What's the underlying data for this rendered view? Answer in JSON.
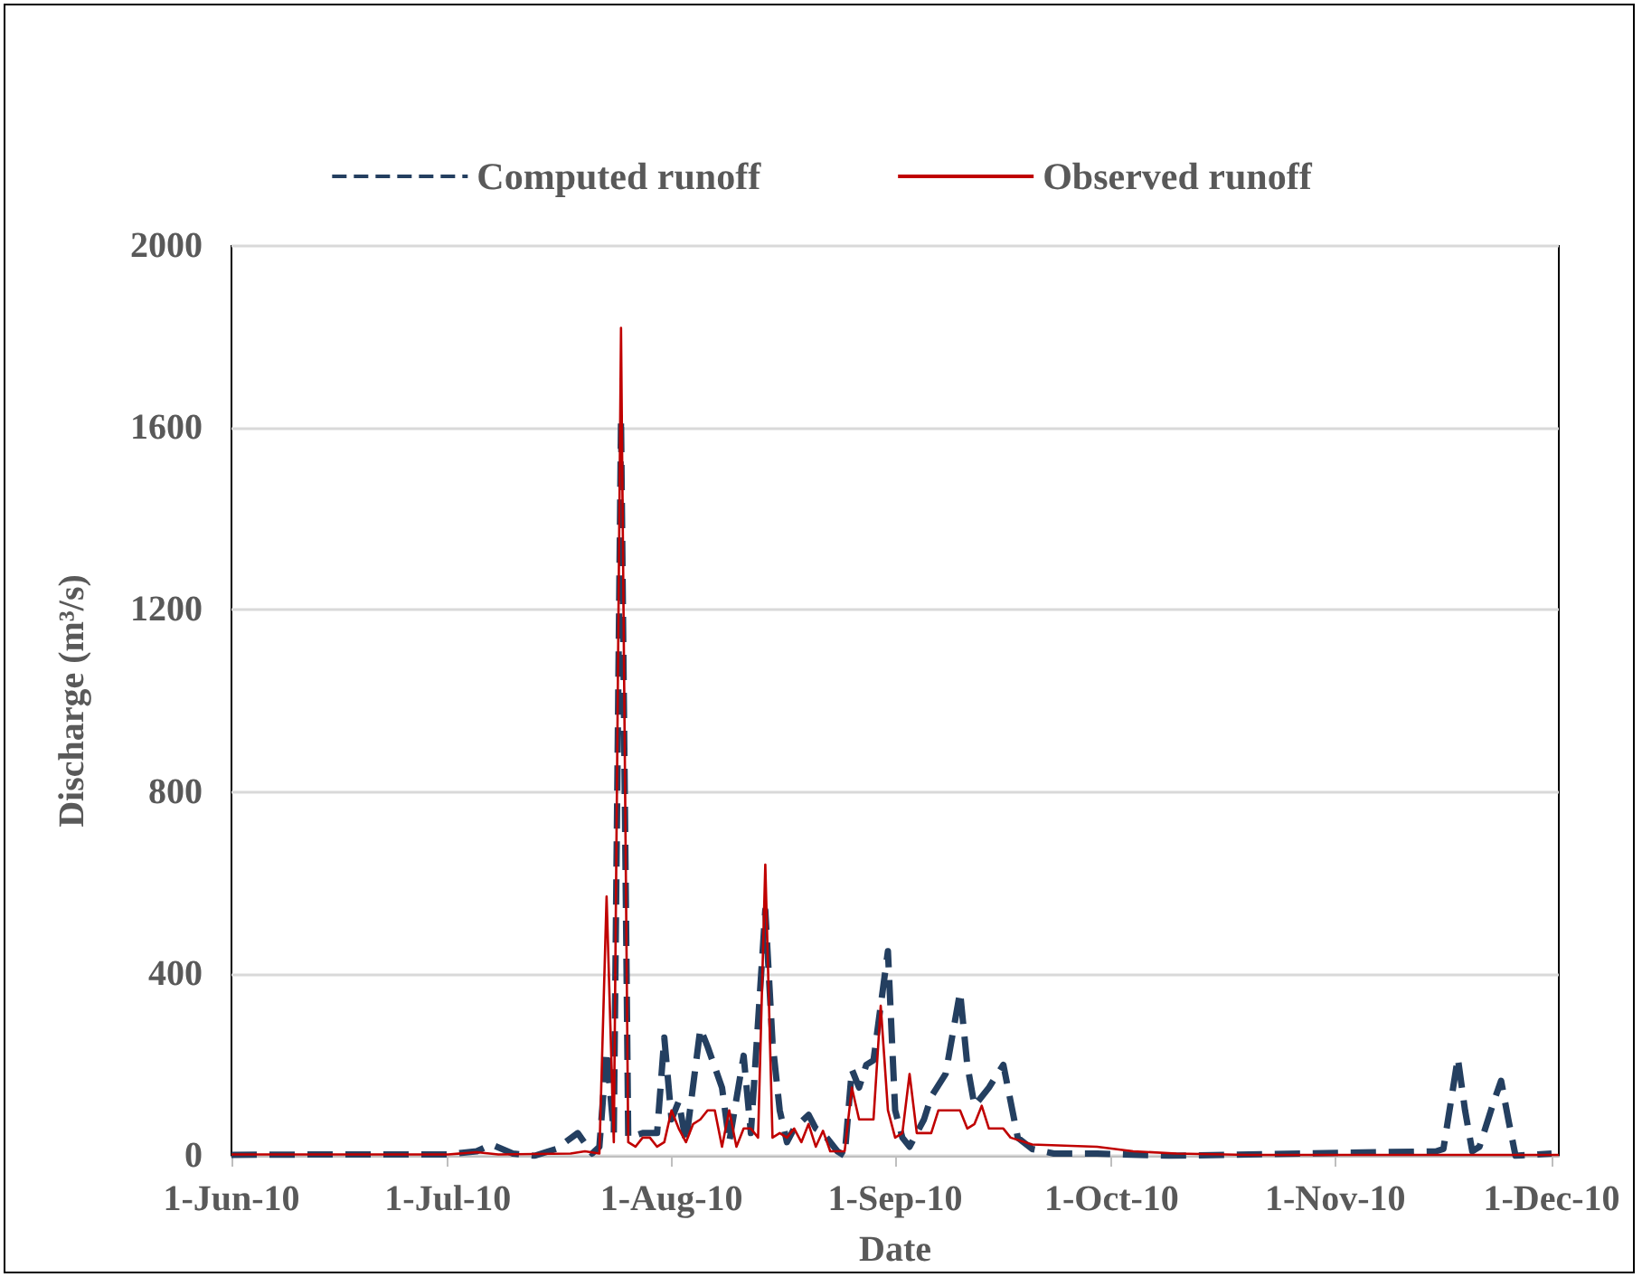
{
  "chart_data": {
    "type": "line",
    "xlabel": "Date",
    "ylabel": "Discharge (m³/s)",
    "xlim": [
      "2010-06-01",
      "2010-12-02"
    ],
    "xticks": [
      {
        "value": "2010-06-01",
        "label": "1-Jun-10"
      },
      {
        "value": "2010-07-01",
        "label": "1-Jul-10"
      },
      {
        "value": "2010-08-01",
        "label": "1-Aug-10"
      },
      {
        "value": "2010-09-01",
        "label": "1-Sep-10"
      },
      {
        "value": "2010-10-01",
        "label": "1-Oct-10"
      },
      {
        "value": "2010-11-01",
        "label": "1-Nov-10"
      },
      {
        "value": "2010-12-01",
        "label": "1-Dec-10"
      }
    ],
    "ylim": [
      0,
      2000
    ],
    "yticks": [
      0,
      400,
      800,
      1200,
      1600,
      2000
    ],
    "grid": "y",
    "legend": "top",
    "marker": "none",
    "series": [
      {
        "name": "Computed runoff",
        "color": "#243f60",
        "line_style": "dashed",
        "x": [
          "2010-06-01",
          "2010-06-15",
          "2010-07-01",
          "2010-07-05",
          "2010-07-07",
          "2010-07-10",
          "2010-07-13",
          "2010-07-16",
          "2010-07-19",
          "2010-07-21",
          "2010-07-22",
          "2010-07-23",
          "2010-07-24",
          "2010-07-25",
          "2010-07-26",
          "2010-07-28",
          "2010-07-30",
          "2010-07-31",
          "2010-08-01",
          "2010-08-02",
          "2010-08-03",
          "2010-08-05",
          "2010-08-06",
          "2010-08-08",
          "2010-08-09",
          "2010-08-11",
          "2010-08-12",
          "2010-08-14",
          "2010-08-15",
          "2010-08-16",
          "2010-08-17",
          "2010-08-18",
          "2010-08-20",
          "2010-08-21",
          "2010-08-22",
          "2010-08-24",
          "2010-08-25",
          "2010-08-26",
          "2010-08-27",
          "2010-08-28",
          "2010-08-29",
          "2010-08-30",
          "2010-08-31",
          "2010-09-01",
          "2010-09-02",
          "2010-09-03",
          "2010-09-05",
          "2010-09-06",
          "2010-09-08",
          "2010-09-10",
          "2010-09-11",
          "2010-09-12",
          "2010-09-14",
          "2010-09-16",
          "2010-09-17",
          "2010-09-18",
          "2010-09-20",
          "2010-09-23",
          "2010-09-29",
          "2010-10-09",
          "2010-11-15",
          "2010-11-16",
          "2010-11-18",
          "2010-11-19",
          "2010-11-20",
          "2010-11-21",
          "2010-11-23",
          "2010-11-24",
          "2010-11-25",
          "2010-11-26",
          "2010-12-01"
        ],
        "values": [
          2,
          3,
          3,
          10,
          25,
          5,
          0,
          15,
          50,
          5,
          20,
          230,
          50,
          1620,
          40,
          50,
          50,
          260,
          80,
          120,
          30,
          280,
          240,
          150,
          30,
          220,
          50,
          540,
          250,
          100,
          30,
          60,
          90,
          60,
          50,
          10,
          0,
          190,
          150,
          200,
          210,
          330,
          450,
          100,
          40,
          20,
          80,
          130,
          180,
          360,
          200,
          110,
          150,
          200,
          120,
          40,
          15,
          5,
          5,
          0,
          10,
          15,
          215,
          100,
          10,
          20,
          120,
          165,
          80,
          0,
          5
        ]
      },
      {
        "name": "Observed runoff",
        "color": "#c00000",
        "line_style": "solid",
        "x": [
          "2010-06-01",
          "2010-07-01",
          "2010-07-05",
          "2010-07-08",
          "2010-07-18",
          "2010-07-20",
          "2010-07-22",
          "2010-07-23",
          "2010-07-24",
          "2010-07-25",
          "2010-07-26",
          "2010-07-27",
          "2010-07-28",
          "2010-07-29",
          "2010-07-30",
          "2010-07-31",
          "2010-08-01",
          "2010-08-02",
          "2010-08-03",
          "2010-08-04",
          "2010-08-05",
          "2010-08-06",
          "2010-08-07",
          "2010-08-08",
          "2010-08-09",
          "2010-08-10",
          "2010-08-11",
          "2010-08-12",
          "2010-08-13",
          "2010-08-14",
          "2010-08-15",
          "2010-08-16",
          "2010-08-17",
          "2010-08-18",
          "2010-08-19",
          "2010-08-20",
          "2010-08-21",
          "2010-08-22",
          "2010-08-23",
          "2010-08-25",
          "2010-08-26",
          "2010-08-27",
          "2010-08-29",
          "2010-08-30",
          "2010-08-31",
          "2010-09-01",
          "2010-09-02",
          "2010-09-03",
          "2010-09-04",
          "2010-09-06",
          "2010-09-07",
          "2010-09-10",
          "2010-09-11",
          "2010-09-12",
          "2010-09-13",
          "2010-09-14",
          "2010-09-16",
          "2010-09-17",
          "2010-09-20",
          "2010-09-29",
          "2010-10-04",
          "2010-10-10",
          "2010-10-20",
          "2010-12-02"
        ],
        "values": [
          3,
          3,
          8,
          3,
          5,
          10,
          5,
          570,
          30,
          1820,
          30,
          20,
          40,
          40,
          20,
          30,
          100,
          60,
          30,
          70,
          80,
          100,
          100,
          20,
          100,
          20,
          60,
          60,
          40,
          640,
          40,
          50,
          40,
          60,
          30,
          70,
          20,
          55,
          10,
          10,
          150,
          80,
          80,
          330,
          100,
          40,
          50,
          180,
          50,
          50,
          100,
          100,
          60,
          70,
          110,
          60,
          60,
          40,
          25,
          20,
          10,
          5,
          2,
          2
        ]
      }
    ]
  }
}
